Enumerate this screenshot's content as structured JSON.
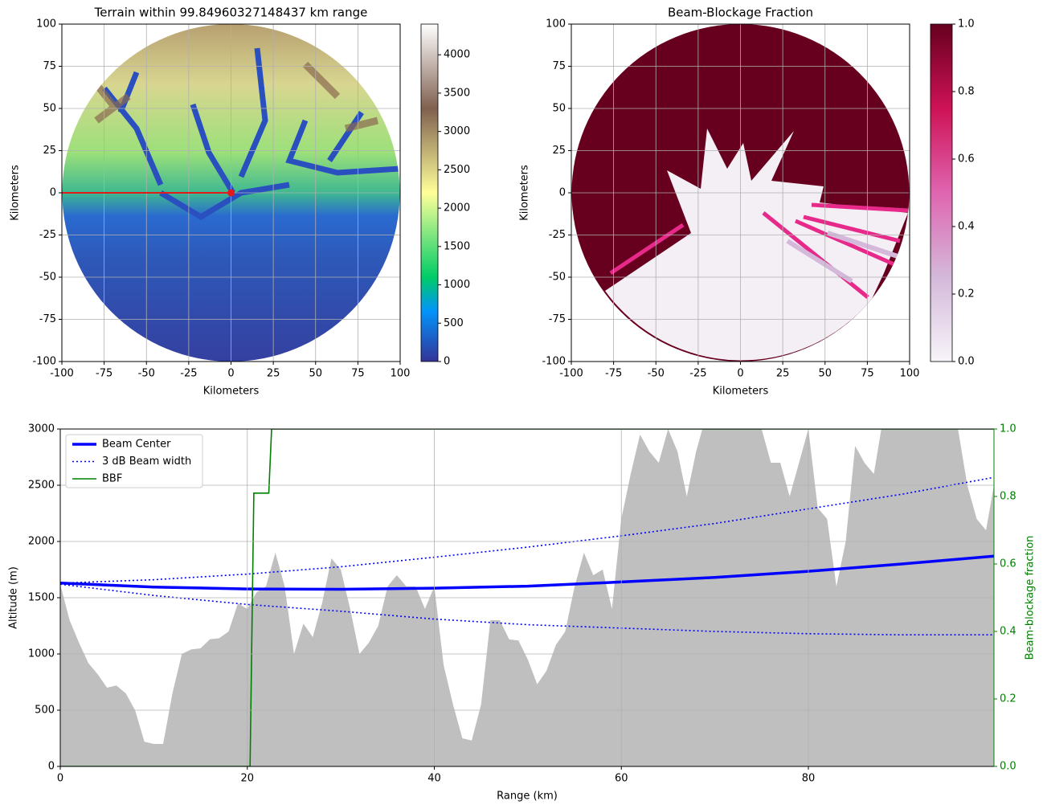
{
  "chart_data": [
    {
      "type": "heatmap",
      "title": "Terrain within 99.84960327148437 km range",
      "xlabel": "Kilometers",
      "ylabel": "Kilometers",
      "xlim": [
        -100,
        100
      ],
      "ylim": [
        -100,
        100
      ],
      "xticks": [
        -100,
        -75,
        -50,
        -25,
        0,
        25,
        50,
        75,
        100
      ],
      "yticks": [
        -100,
        -75,
        -50,
        -25,
        0,
        25,
        50,
        75,
        100
      ],
      "grid": true,
      "colormap": "terrain",
      "clim": [
        0,
        4400
      ],
      "cticks": [
        0,
        500,
        1000,
        1500,
        2000,
        2500,
        3000,
        3500,
        4000
      ],
      "path": {
        "x": [
          -100,
          0
        ],
        "y": [
          0,
          0
        ],
        "color": "#e31a1c"
      }
    },
    {
      "type": "heatmap",
      "title": "Beam-Blockage Fraction",
      "xlabel": "Kilometers",
      "ylabel": "Kilometers",
      "xlim": [
        -100,
        100
      ],
      "ylim": [
        -100,
        100
      ],
      "xticks": [
        -100,
        -75,
        -50,
        -25,
        0,
        25,
        50,
        75,
        100
      ],
      "yticks": [
        -100,
        -75,
        -50,
        -25,
        0,
        25,
        50,
        75,
        100
      ],
      "grid": true,
      "colormap": "PuRd",
      "clim": [
        0,
        1
      ],
      "cticks": [
        {
          "value": 0,
          "label": "0.0"
        },
        0.2,
        0.4,
        0.6,
        0.8,
        {
          "value": 1,
          "label": "1.0"
        }
      ]
    },
    {
      "type": "line",
      "xlabel": "Range (km)",
      "ylabel": "Altitude (m)",
      "y2label": "Beam-blockage fraction",
      "y2color": "#008000",
      "xlim": [
        0,
        99.85
      ],
      "ylim": [
        0,
        3000
      ],
      "y2lim": [
        0,
        1
      ],
      "xticks": [
        0,
        20,
        40,
        60,
        80
      ],
      "yticks": [
        0,
        500,
        1000,
        1500,
        2000,
        2500,
        3000
      ],
      "y2ticks": [
        {
          "value": 0,
          "label": "0.0"
        },
        0.2,
        0.4,
        0.6,
        0.8,
        {
          "value": 1,
          "label": "1.0"
        }
      ],
      "grid": true,
      "legend": "upper left",
      "area": {
        "color": "#bfbfbf",
        "x": [
          0,
          1,
          2,
          3,
          4,
          5,
          6,
          7,
          8,
          9,
          10,
          11,
          12,
          13,
          14,
          15,
          16,
          17,
          18,
          19,
          20,
          21,
          22,
          23,
          24,
          25,
          26,
          27,
          28,
          29,
          30,
          31,
          32,
          33,
          34,
          35,
          36,
          37,
          38,
          39,
          40,
          41,
          42,
          43,
          44,
          45,
          46,
          47,
          48,
          49,
          50,
          51,
          52,
          53,
          54,
          55,
          56,
          57,
          58,
          59,
          60,
          61,
          62,
          63,
          64,
          65,
          66,
          67,
          68,
          69,
          70,
          71,
          72,
          73,
          74,
          75,
          76,
          77,
          78,
          79,
          80,
          81,
          82,
          83,
          84,
          85,
          86,
          87,
          88,
          89,
          90,
          91,
          92,
          93,
          94,
          95,
          96,
          97,
          98,
          99,
          99.85
        ],
        "values": [
          1620,
          1300,
          1100,
          920,
          820,
          700,
          720,
          650,
          500,
          220,
          200,
          200,
          650,
          1000,
          1040,
          1050,
          1130,
          1140,
          1200,
          1450,
          1400,
          1550,
          1600,
          1900,
          1600,
          1000,
          1270,
          1150,
          1450,
          1850,
          1750,
          1400,
          1000,
          1100,
          1250,
          1600,
          1700,
          1600,
          1600,
          1400,
          1600,
          900,
          550,
          250,
          230,
          550,
          1300,
          1300,
          1130,
          1120,
          950,
          730,
          850,
          1080,
          1200,
          1600,
          1900,
          1700,
          1750,
          1400,
          2200,
          2600,
          2950,
          2800,
          2700,
          3000,
          2800,
          2400,
          2800,
          3100,
          3200,
          3200,
          3200,
          3100,
          3100,
          3000,
          2700,
          2700,
          2400,
          2700,
          3000,
          2300,
          2200,
          1600,
          2000,
          2850,
          2700,
          2600,
          3100,
          3200,
          3200,
          3200,
          3200,
          3200,
          3200,
          3100,
          3000,
          2500,
          2200,
          2100,
          2500
        ]
      },
      "series": [
        {
          "name": "Beam Center",
          "color": "#0000ff",
          "style": "solid",
          "x": [
            0,
            10,
            20,
            30,
            40,
            50,
            60,
            70,
            80,
            90,
            99.85
          ],
          "values": [
            1630,
            1595,
            1578,
            1575,
            1585,
            1603,
            1640,
            1680,
            1735,
            1800,
            1870
          ]
        },
        {
          "name": "3 dB Beam width",
          "color": "#0000ff",
          "style": "dotted",
          "x": [
            0,
            10,
            20,
            30,
            40,
            50,
            60,
            70,
            80,
            90,
            99.85
          ],
          "values": [
            1630,
            1660,
            1710,
            1775,
            1860,
            1950,
            2050,
            2160,
            2290,
            2420,
            2570
          ],
          "lower_values": [
            1620,
            1520,
            1440,
            1380,
            1310,
            1260,
            1230,
            1200,
            1180,
            1170,
            1170
          ]
        },
        {
          "name": "BBF",
          "color": "#008000",
          "style": "solid",
          "axis": "y2",
          "x": [
            0,
            20.3,
            20.7,
            22.3,
            22.6,
            99.85
          ],
          "values": [
            0,
            0,
            0.81,
            0.81,
            1,
            1
          ]
        }
      ]
    }
  ]
}
